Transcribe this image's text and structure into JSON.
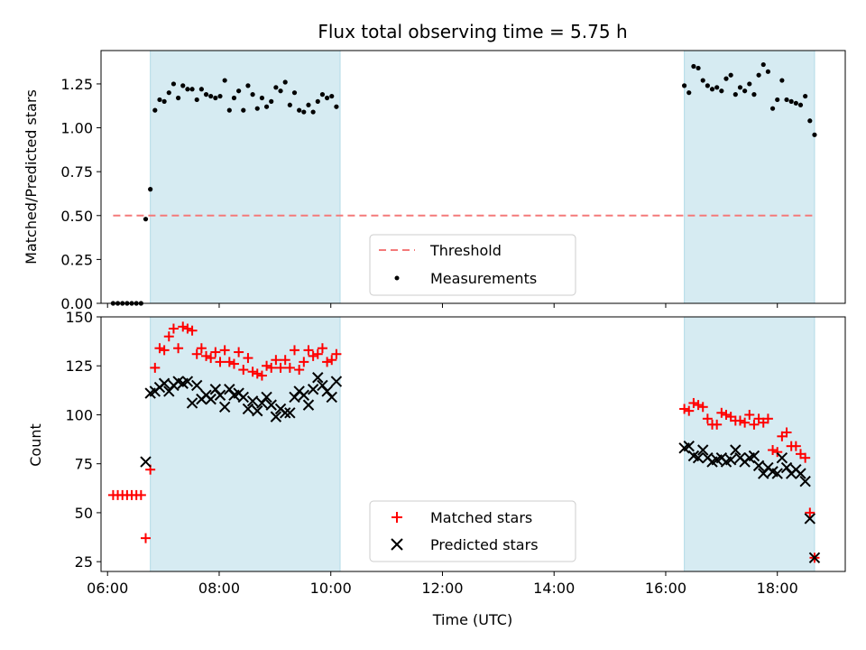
{
  "chart_data": [
    {
      "type": "scatter",
      "title": "Flux total observing time = 5.75 h",
      "xlabel": "",
      "ylabel": "Matched/Predicted stars",
      "xlim": [
        "05:53",
        "19:13"
      ],
      "ylim": [
        0,
        1.44
      ],
      "yticks": [
        "0.00",
        "0.25",
        "0.50",
        "0.75",
        "1.00",
        "1.25"
      ],
      "shaded_intervals": [
        [
          "06:46",
          "10:10"
        ],
        [
          "16:20",
          "18:40"
        ]
      ],
      "threshold": {
        "name": "Threshold",
        "value": 0.5,
        "x_start": "06:06",
        "x_end": "18:40",
        "color": "#f47a7a"
      },
      "legend_position": "lower-center",
      "series": [
        {
          "name": "Measurements",
          "color": "#000000",
          "points": [
            [
              "06:06",
              0
            ],
            [
              "06:11",
              0
            ],
            [
              "06:16",
              0
            ],
            [
              "06:21",
              0
            ],
            [
              "06:26",
              0
            ],
            [
              "06:31",
              0
            ],
            [
              "06:36",
              0
            ],
            [
              "06:41",
              0.48
            ],
            [
              "06:46",
              0.65
            ],
            [
              "06:51",
              1.1
            ],
            [
              "06:56",
              1.16
            ],
            [
              "07:01",
              1.15
            ],
            [
              "07:06",
              1.2
            ],
            [
              "07:11",
              1.25
            ],
            [
              "07:16",
              1.17
            ],
            [
              "07:21",
              1.24
            ],
            [
              "07:26",
              1.22
            ],
            [
              "07:31",
              1.22
            ],
            [
              "07:36",
              1.16
            ],
            [
              "07:41",
              1.22
            ],
            [
              "07:46",
              1.19
            ],
            [
              "07:51",
              1.18
            ],
            [
              "07:56",
              1.17
            ],
            [
              "08:01",
              1.18
            ],
            [
              "08:06",
              1.27
            ],
            [
              "08:11",
              1.1
            ],
            [
              "08:16",
              1.17
            ],
            [
              "08:21",
              1.21
            ],
            [
              "08:26",
              1.1
            ],
            [
              "08:31",
              1.24
            ],
            [
              "08:36",
              1.19
            ],
            [
              "08:41",
              1.11
            ],
            [
              "08:46",
              1.17
            ],
            [
              "08:51",
              1.12
            ],
            [
              "08:56",
              1.15
            ],
            [
              "09:01",
              1.23
            ],
            [
              "09:06",
              1.21
            ],
            [
              "09:11",
              1.26
            ],
            [
              "09:16",
              1.13
            ],
            [
              "09:21",
              1.2
            ],
            [
              "09:26",
              1.1
            ],
            [
              "09:31",
              1.09
            ],
            [
              "09:36",
              1.13
            ],
            [
              "09:41",
              1.09
            ],
            [
              "09:46",
              1.15
            ],
            [
              "09:51",
              1.19
            ],
            [
              "09:56",
              1.17
            ],
            [
              "10:01",
              1.18
            ],
            [
              "10:06",
              1.12
            ],
            [
              "16:20",
              1.24
            ],
            [
              "16:25",
              1.2
            ],
            [
              "16:30",
              1.35
            ],
            [
              "16:35",
              1.34
            ],
            [
              "16:40",
              1.27
            ],
            [
              "16:45",
              1.24
            ],
            [
              "16:50",
              1.22
            ],
            [
              "16:55",
              1.23
            ],
            [
              "17:00",
              1.21
            ],
            [
              "17:05",
              1.28
            ],
            [
              "17:10",
              1.3
            ],
            [
              "17:15",
              1.19
            ],
            [
              "17:20",
              1.23
            ],
            [
              "17:25",
              1.21
            ],
            [
              "17:30",
              1.25
            ],
            [
              "17:35",
              1.19
            ],
            [
              "17:40",
              1.3
            ],
            [
              "17:45",
              1.36
            ],
            [
              "17:50",
              1.32
            ],
            [
              "17:55",
              1.11
            ],
            [
              "18:00",
              1.16
            ],
            [
              "18:05",
              1.27
            ],
            [
              "18:10",
              1.16
            ],
            [
              "18:15",
              1.15
            ],
            [
              "18:20",
              1.14
            ],
            [
              "18:25",
              1.13
            ],
            [
              "18:30",
              1.18
            ],
            [
              "18:35",
              1.04
            ],
            [
              "18:40",
              0.96
            ]
          ]
        }
      ]
    },
    {
      "type": "scatter",
      "title": "",
      "xlabel": "Time (UTC)",
      "ylabel": "Count",
      "xlim": [
        "05:53",
        "19:13"
      ],
      "ylim": [
        20,
        150
      ],
      "yticks": [
        "25",
        "50",
        "75",
        "100",
        "125",
        "150"
      ],
      "xticks": [
        "06:00",
        "08:00",
        "10:00",
        "12:00",
        "14:00",
        "16:00",
        "18:00"
      ],
      "shaded_intervals": [
        [
          "06:46",
          "10:10"
        ],
        [
          "16:20",
          "18:40"
        ]
      ],
      "legend_position": "lower-center",
      "series": [
        {
          "name": "Matched stars",
          "color": "#ff0000",
          "marker": "plus",
          "points": [
            [
              "06:06",
              59
            ],
            [
              "06:11",
              59
            ],
            [
              "06:16",
              59
            ],
            [
              "06:21",
              59
            ],
            [
              "06:26",
              59
            ],
            [
              "06:31",
              59
            ],
            [
              "06:36",
              59
            ],
            [
              "06:41",
              37
            ],
            [
              "06:46",
              72
            ],
            [
              "06:51",
              124
            ],
            [
              "06:56",
              134
            ],
            [
              "07:01",
              133
            ],
            [
              "07:06",
              140
            ],
            [
              "07:11",
              144
            ],
            [
              "07:16",
              134
            ],
            [
              "07:21",
              145
            ],
            [
              "07:26",
              144
            ],
            [
              "07:31",
              143
            ],
            [
              "07:36",
              131
            ],
            [
              "07:41",
              134
            ],
            [
              "07:46",
              130
            ],
            [
              "07:51",
              129
            ],
            [
              "07:56",
              132
            ],
            [
              "08:01",
              127
            ],
            [
              "08:06",
              133
            ],
            [
              "08:11",
              127
            ],
            [
              "08:16",
              126
            ],
            [
              "08:21",
              132
            ],
            [
              "08:26",
              123
            ],
            [
              "08:31",
              129
            ],
            [
              "08:36",
              122
            ],
            [
              "08:41",
              121
            ],
            [
              "08:46",
              120
            ],
            [
              "08:51",
              125
            ],
            [
              "08:56",
              124
            ],
            [
              "09:01",
              128
            ],
            [
              "09:06",
              124
            ],
            [
              "09:11",
              128
            ],
            [
              "09:16",
              124
            ],
            [
              "09:21",
              133
            ],
            [
              "09:26",
              123
            ],
            [
              "09:31",
              127
            ],
            [
              "09:36",
              133
            ],
            [
              "09:41",
              130
            ],
            [
              "09:46",
              131
            ],
            [
              "09:51",
              134
            ],
            [
              "09:56",
              127
            ],
            [
              "10:01",
              128
            ],
            [
              "10:06",
              131
            ],
            [
              "16:20",
              103
            ],
            [
              "16:25",
              102
            ],
            [
              "16:30",
              106
            ],
            [
              "16:35",
              105
            ],
            [
              "16:40",
              104
            ],
            [
              "16:45",
              98
            ],
            [
              "16:50",
              95
            ],
            [
              "16:55",
              95
            ],
            [
              "17:00",
              101
            ],
            [
              "17:05",
              100
            ],
            [
              "17:10",
              99
            ],
            [
              "17:15",
              97
            ],
            [
              "17:20",
              97
            ],
            [
              "17:25",
              96
            ],
            [
              "17:30",
              100
            ],
            [
              "17:35",
              95
            ],
            [
              "17:40",
              98
            ],
            [
              "17:45",
              96
            ],
            [
              "17:50",
              98
            ],
            [
              "17:55",
              82
            ],
            [
              "18:00",
              81
            ],
            [
              "18:05",
              89
            ],
            [
              "18:10",
              91
            ],
            [
              "18:15",
              84
            ],
            [
              "18:20",
              84
            ],
            [
              "18:25",
              80
            ],
            [
              "18:30",
              78
            ],
            [
              "18:35",
              50
            ],
            [
              "18:40",
              27
            ]
          ]
        },
        {
          "name": "Predicted stars",
          "color": "#000000",
          "marker": "x",
          "points": [
            [
              "06:41",
              76
            ],
            [
              "06:46",
              111
            ],
            [
              "06:51",
              112
            ],
            [
              "06:56",
              114
            ],
            [
              "07:01",
              116
            ],
            [
              "07:06",
              112
            ],
            [
              "07:11",
              115
            ],
            [
              "07:16",
              117
            ],
            [
              "07:21",
              116
            ],
            [
              "07:26",
              117
            ],
            [
              "07:31",
              106
            ],
            [
              "07:36",
              115
            ],
            [
              "07:41",
              108
            ],
            [
              "07:46",
              110
            ],
            [
              "07:51",
              108
            ],
            [
              "07:56",
              113
            ],
            [
              "08:01",
              110
            ],
            [
              "08:06",
              104
            ],
            [
              "08:11",
              113
            ],
            [
              "08:16",
              110
            ],
            [
              "08:21",
              111
            ],
            [
              "08:26",
              109
            ],
            [
              "08:31",
              103
            ],
            [
              "08:36",
              107
            ],
            [
              "08:41",
              102
            ],
            [
              "08:46",
              106
            ],
            [
              "08:51",
              109
            ],
            [
              "08:56",
              105
            ],
            [
              "09:01",
              99
            ],
            [
              "09:06",
              103
            ],
            [
              "09:11",
              101
            ],
            [
              "09:16",
              101
            ],
            [
              "09:21",
              109
            ],
            [
              "09:26",
              112
            ],
            [
              "09:31",
              110
            ],
            [
              "09:36",
              105
            ],
            [
              "09:41",
              113
            ],
            [
              "09:46",
              119
            ],
            [
              "09:51",
              115
            ],
            [
              "09:56",
              112
            ],
            [
              "10:01",
              109
            ],
            [
              "10:06",
              117
            ],
            [
              "16:20",
              83
            ],
            [
              "16:25",
              84
            ],
            [
              "16:30",
              79
            ],
            [
              "16:35",
              78
            ],
            [
              "16:40",
              82
            ],
            [
              "16:45",
              78
            ],
            [
              "16:50",
              76
            ],
            [
              "16:55",
              77
            ],
            [
              "17:00",
              78
            ],
            [
              "17:05",
              76
            ],
            [
              "17:10",
              77
            ],
            [
              "17:15",
              82
            ],
            [
              "17:20",
              78
            ],
            [
              "17:25",
              76
            ],
            [
              "17:30",
              78
            ],
            [
              "17:35",
              79
            ],
            [
              "17:40",
              74
            ],
            [
              "17:45",
              70
            ],
            [
              "17:50",
              73
            ],
            [
              "17:55",
              71
            ],
            [
              "18:00",
              70
            ],
            [
              "18:05",
              78
            ],
            [
              "18:10",
              73
            ],
            [
              "18:15",
              70
            ],
            [
              "18:20",
              72
            ],
            [
              "18:25",
              70
            ],
            [
              "18:30",
              66
            ],
            [
              "18:35",
              47
            ],
            [
              "18:40",
              27
            ]
          ]
        }
      ]
    }
  ]
}
